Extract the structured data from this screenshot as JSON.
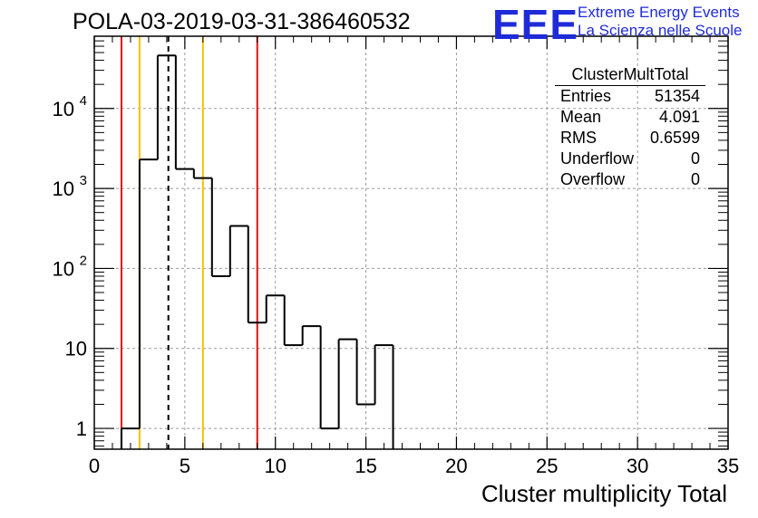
{
  "title": "POLA-03-2019-03-31-386460532",
  "logo": {
    "text": "EEE",
    "line1": "Extreme Energy Events",
    "line2": "La Scienza nelle Scuole"
  },
  "stats": {
    "name": "ClusterMultTotal",
    "rows": [
      {
        "label": "Entries",
        "value": "51354"
      },
      {
        "label": "Mean",
        "value": "4.091"
      },
      {
        "label": "RMS",
        "value": "0.6599"
      },
      {
        "label": "Underflow",
        "value": "0"
      },
      {
        "label": "Overflow",
        "value": "0"
      }
    ]
  },
  "colors": {
    "red": "#dd1111",
    "yellow": "#f2c200",
    "grid": "#9a9a9a",
    "line": "#000000"
  },
  "chart_data": {
    "type": "bar",
    "subtype": "step-histogram",
    "xlabel": "Cluster multiplicity Total",
    "xlim": [
      0,
      35
    ],
    "ylim": [
      0.55,
      80000
    ],
    "yscale": "log",
    "grid": true,
    "bin_width": 1,
    "bins": [
      {
        "x": 1.5,
        "value": 1
      },
      {
        "x": 2.5,
        "value": 2300
      },
      {
        "x": 3.5,
        "value": 46000
      },
      {
        "x": 4.5,
        "value": 1750
      },
      {
        "x": 5.5,
        "value": 1350
      },
      {
        "x": 6.5,
        "value": 80
      },
      {
        "x": 7.5,
        "value": 340
      },
      {
        "x": 8.5,
        "value": 21
      },
      {
        "x": 9.5,
        "value": 46
      },
      {
        "x": 10.5,
        "value": 11
      },
      {
        "x": 11.5,
        "value": 19
      },
      {
        "x": 12.5,
        "value": 1
      },
      {
        "x": 13.5,
        "value": 13
      },
      {
        "x": 14.5,
        "value": 2
      },
      {
        "x": 15.5,
        "value": 11
      }
    ],
    "x_ticks": [
      {
        "value": 0,
        "label": "0"
      },
      {
        "value": 5,
        "label": "5"
      },
      {
        "value": 10,
        "label": "10"
      },
      {
        "value": 15,
        "label": "15"
      },
      {
        "value": 20,
        "label": "20"
      },
      {
        "value": 25,
        "label": "25"
      },
      {
        "value": 30,
        "label": "30"
      },
      {
        "value": 35,
        "label": "35"
      }
    ],
    "y_ticks": [
      {
        "value": 1,
        "label": "1"
      },
      {
        "value": 10,
        "label": "10"
      },
      {
        "value": 100,
        "label": "10",
        "exp": "2"
      },
      {
        "value": 1000,
        "label": "10",
        "exp": "3"
      },
      {
        "value": 10000,
        "label": "10",
        "exp": "4"
      }
    ],
    "vertical_lines": [
      {
        "x": 1.5,
        "color": "red",
        "style": "solid"
      },
      {
        "x": 2.5,
        "color": "yellow",
        "style": "solid"
      },
      {
        "x": 4.091,
        "color": "black",
        "style": "dashed"
      },
      {
        "x": 6.0,
        "color": "yellow",
        "style": "solid"
      },
      {
        "x": 9.0,
        "color": "red",
        "style": "solid"
      }
    ]
  }
}
